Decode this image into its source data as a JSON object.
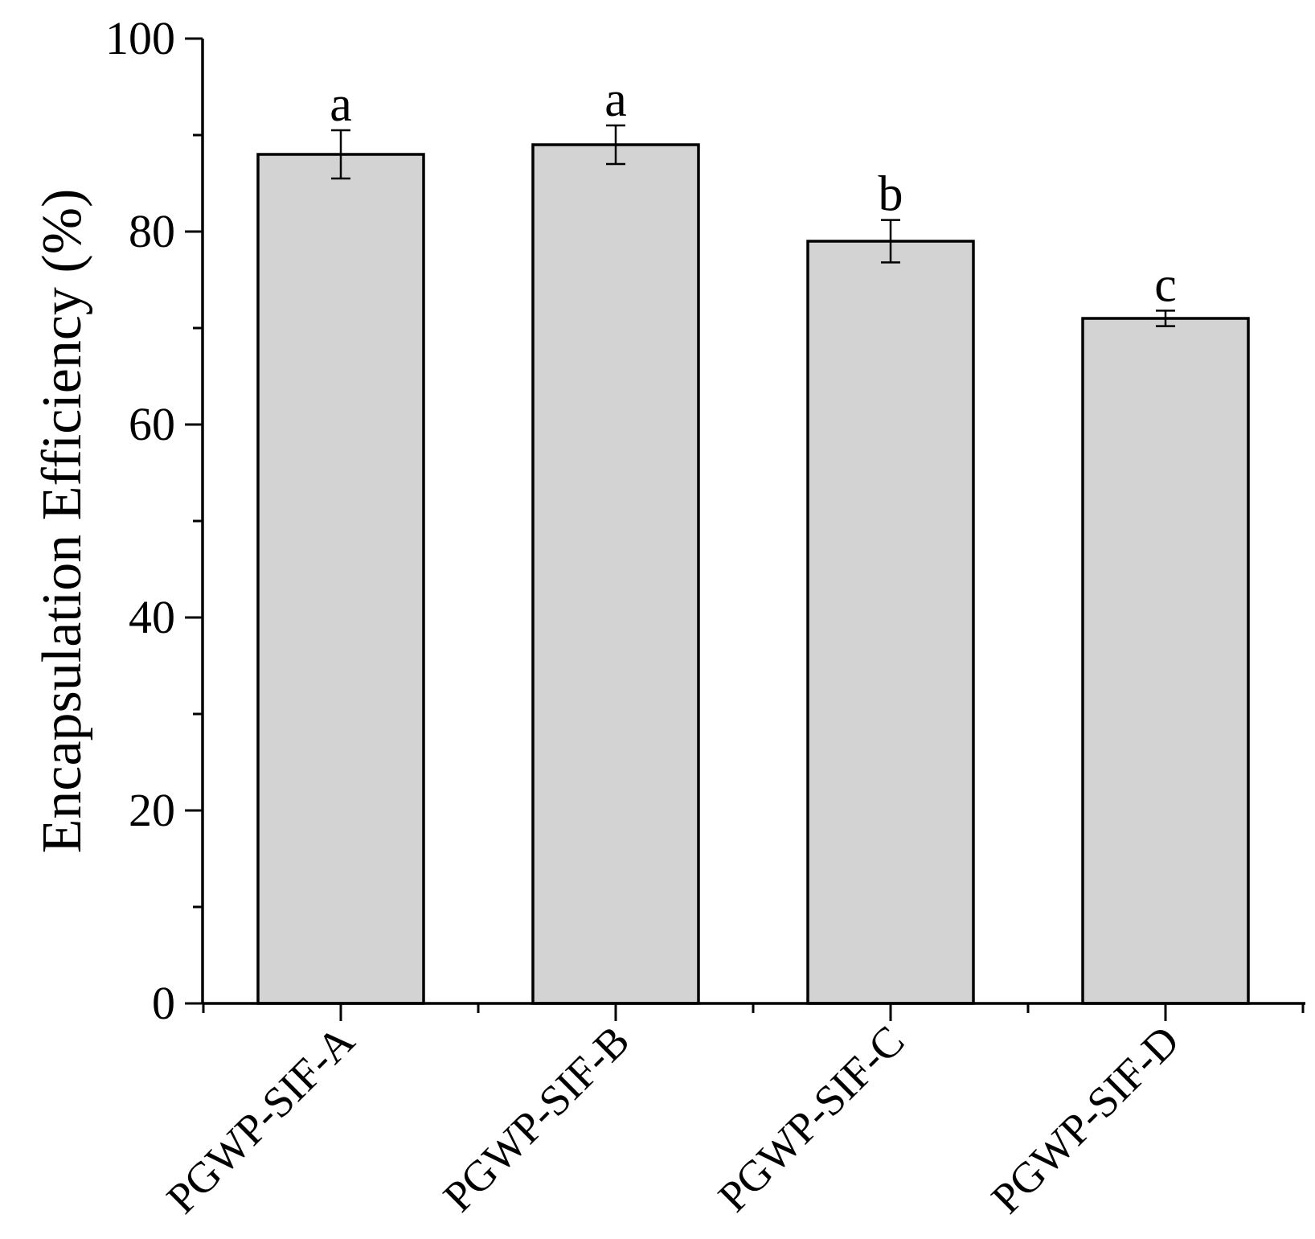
{
  "chart_data": {
    "type": "bar",
    "title": "",
    "xlabel": "",
    "ylabel": "Encapsulation Efficiency (%)",
    "ylim": [
      0,
      100
    ],
    "yticks": [
      0,
      20,
      40,
      60,
      80,
      100
    ],
    "y_minor_step": 10,
    "grid": false,
    "categories": [
      "PGWP-SIF-A",
      "PGWP-SIF-B",
      "PGWP-SIF-C",
      "PGWP-SIF-D"
    ],
    "values": [
      88.0,
      89.0,
      79.0,
      71.0
    ],
    "errors": [
      2.5,
      2.0,
      2.2,
      0.8
    ],
    "significance": [
      "a",
      "a",
      "b",
      "c"
    ],
    "bar_color": "#d3d3d3",
    "edge_color": "#000000"
  }
}
